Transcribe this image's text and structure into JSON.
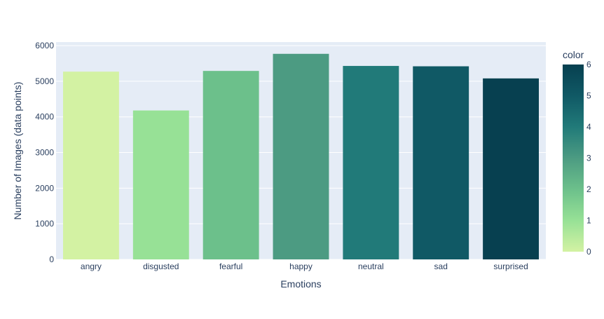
{
  "chart_data": {
    "type": "bar",
    "title": "",
    "xlabel": "Emotions",
    "ylabel": "Number of Images (data points)",
    "categories": [
      "angry",
      "disgusted",
      "fearful",
      "happy",
      "neutral",
      "sad",
      "surprised"
    ],
    "values": [
      5270,
      4180,
      5290,
      5770,
      5430,
      5420,
      5080
    ],
    "color_values": [
      0,
      1,
      2,
      3,
      4,
      5,
      6
    ],
    "ylim": [
      0,
      6100
    ],
    "yticks": [
      0,
      1000,
      2000,
      3000,
      4000,
      5000,
      6000
    ],
    "grid": true,
    "plot_background": "#e5ecf6",
    "colorscale": [
      "#d3f2a3",
      "#97e196",
      "#6cc08b",
      "#4c9b82",
      "#217a79",
      "#105965",
      "#074050"
    ],
    "colorbar": {
      "title": "color",
      "range": [
        0,
        6
      ],
      "ticks": [
        0,
        1,
        2,
        3,
        4,
        5,
        6
      ]
    }
  }
}
